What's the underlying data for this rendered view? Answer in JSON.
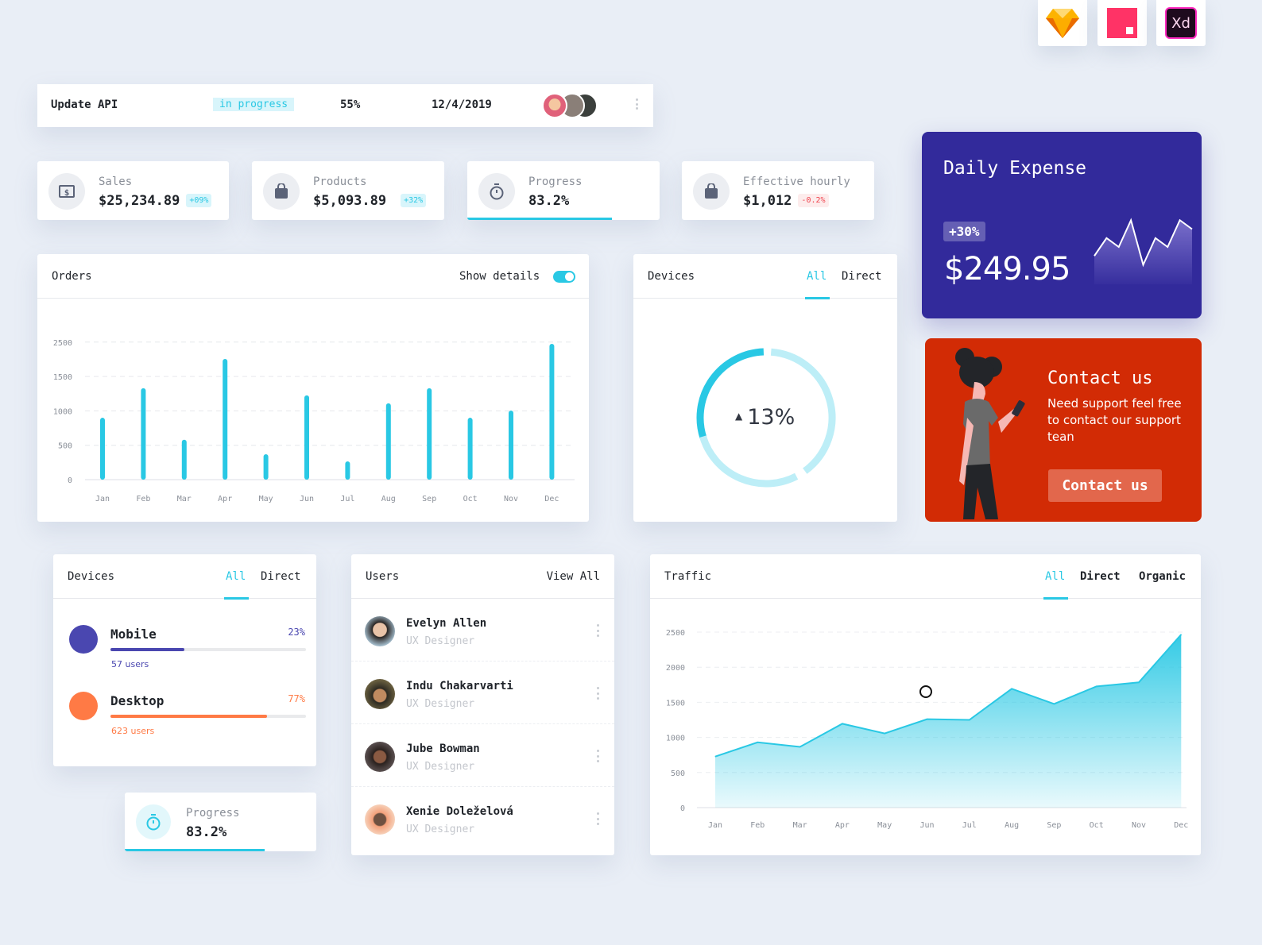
{
  "tools": [
    {
      "name": "Sketch",
      "icon": "sketch-diamond-icon"
    },
    {
      "name": "InVision",
      "icon": "invision-square-icon"
    },
    {
      "name": "Adobe XD",
      "label": "Xd",
      "icon": "xd-icon"
    }
  ],
  "task": {
    "name": "Update API",
    "status": "in progress",
    "percent": "55%",
    "date": "12/4/2019",
    "avatar_count": 3
  },
  "stats": [
    {
      "label": "Sales",
      "value": "$25,234.89",
      "badge": "+09%",
      "badge_type": "positive",
      "icon": "dollar-icon"
    },
    {
      "label": "Products",
      "value": "$5,093.89",
      "badge": "+32%",
      "badge_type": "positive",
      "icon": "bag-icon"
    },
    {
      "label": "Progress",
      "value": "83.2%",
      "progress": 0.75,
      "icon": "stopwatch-icon"
    },
    {
      "label": "Effective hourly",
      "value": "$1,012",
      "badge": "-0.2%",
      "badge_type": "negative",
      "icon": "bag-icon"
    }
  ],
  "orders": {
    "title": "Orders",
    "toggle_label": "Show details",
    "toggle_on": true
  },
  "devices_donut": {
    "title": "Devices",
    "tabs": [
      "All",
      "Direct"
    ],
    "active_tab": 0,
    "value": "13%",
    "trend": "up",
    "segments": [
      0.3,
      0.4,
      0.28
    ]
  },
  "daily_expense": {
    "title": "Daily Expense",
    "badge": "+30%",
    "amount": "$249.95",
    "spark": [
      3,
      5,
      4,
      7,
      2,
      5,
      4,
      7,
      6
    ]
  },
  "contact": {
    "title": "Contact us",
    "text": "Need support feel free to contact our support tean",
    "button": "Contact us"
  },
  "devices_list": {
    "title": "Devices",
    "tabs": [
      "All",
      "Direct"
    ],
    "active_tab": 0,
    "items": [
      {
        "name": "Mobile",
        "percent": "23%",
        "fill": 0.38,
        "users": "57 users",
        "color": "#4a47b0"
      },
      {
        "name": "Desktop",
        "percent": "77%",
        "fill": 0.8,
        "users": "623 users",
        "color": "#ff7a45"
      }
    ]
  },
  "progress_small": {
    "label": "Progress",
    "value": "83.2%",
    "progress": 0.73
  },
  "users": {
    "title": "Users",
    "view_all": "View All",
    "items": [
      {
        "name": "Evelyn Allen",
        "role": "UX Designer"
      },
      {
        "name": "Indu Chakarvarti",
        "role": "UX Designer"
      },
      {
        "name": "Jube Bowman",
        "role": "UX Designer"
      },
      {
        "name": "Xenie Doleželová",
        "role": "UX Designer"
      }
    ]
  },
  "traffic": {
    "title": "Traffic",
    "tabs": [
      "All",
      "Direct",
      "Organic"
    ],
    "active_tab": 0
  },
  "colors": {
    "accent": "#29c8e4",
    "expense": "#322a9b",
    "contact": "#d22b05",
    "mobile": "#4a47b0",
    "desktop": "#ff7a45"
  },
  "chart_data": [
    {
      "type": "bar",
      "title": "Orders",
      "categories": [
        "Jan",
        "Feb",
        "Mar",
        "Apr",
        "May",
        "Jun",
        "Jul",
        "Aug",
        "Sep",
        "Oct",
        "Nov",
        "Dec"
      ],
      "values": [
        900,
        1330,
        580,
        1755,
        370,
        1225,
        265,
        1110,
        1330,
        900,
        1005,
        1975
      ],
      "yticks": [
        "0",
        "500",
        "1000",
        "1500",
        "2500"
      ],
      "grid": true
    },
    {
      "type": "area",
      "title": "Traffic",
      "categories": [
        "Jan",
        "Feb",
        "Mar",
        "Apr",
        "May",
        "Jun",
        "Jul",
        "Aug",
        "Sep",
        "Oct",
        "Nov",
        "Dec"
      ],
      "values": [
        727,
        930,
        865,
        1195,
        1057,
        1260,
        1250,
        1693,
        1477,
        1727,
        1784,
        2466
      ],
      "yticks": [
        "0",
        "500",
        "1000",
        "1500",
        "2000",
        "2500"
      ],
      "ylim": [
        0,
        2500
      ],
      "grid": true
    }
  ]
}
